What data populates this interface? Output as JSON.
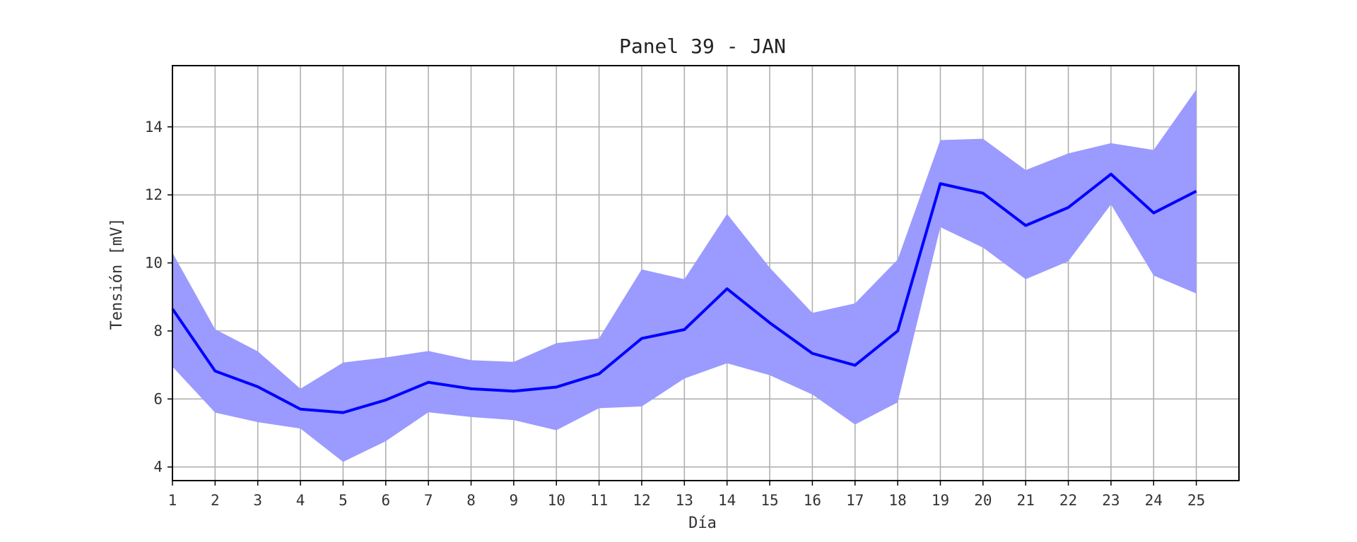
{
  "chart_data": {
    "type": "line",
    "title": "Panel 39 - JAN",
    "xlabel": "Día",
    "ylabel": "Tensión [mV]",
    "x": [
      1,
      2,
      3,
      4,
      5,
      6,
      7,
      8,
      9,
      10,
      11,
      12,
      13,
      14,
      15,
      16,
      17,
      18,
      19,
      20,
      21,
      22,
      23,
      24,
      25
    ],
    "xlim": [
      1,
      26
    ],
    "ylim": [
      3.6,
      15.8
    ],
    "yticks": [
      4,
      6,
      8,
      10,
      12,
      14
    ],
    "grid": true,
    "series": [
      {
        "values": [
          8.65,
          6.82,
          6.36,
          5.7,
          5.6,
          5.97,
          6.49,
          6.3,
          6.23,
          6.35,
          6.74,
          7.78,
          8.04,
          9.24,
          8.24,
          7.34,
          6.99,
          8.0,
          12.33,
          12.05,
          11.1,
          11.63,
          12.61,
          11.47,
          12.11
        ],
        "upper": [
          10.3,
          8.05,
          7.4,
          6.3,
          7.07,
          7.22,
          7.41,
          7.14,
          7.09,
          7.64,
          7.78,
          9.81,
          9.52,
          11.44,
          9.86,
          8.53,
          8.81,
          10.1,
          13.61,
          13.65,
          12.73,
          13.22,
          13.52,
          13.32,
          15.1
        ],
        "lower": [
          6.95,
          5.6,
          5.32,
          5.13,
          4.15,
          4.76,
          5.61,
          5.47,
          5.38,
          5.08,
          5.73,
          5.78,
          6.6,
          7.05,
          6.7,
          6.13,
          5.25,
          5.9,
          11.05,
          10.45,
          9.52,
          10.05,
          11.72,
          9.63,
          9.1
        ],
        "line_color": "#0000ff",
        "band_color": "#9a9aff"
      }
    ]
  }
}
